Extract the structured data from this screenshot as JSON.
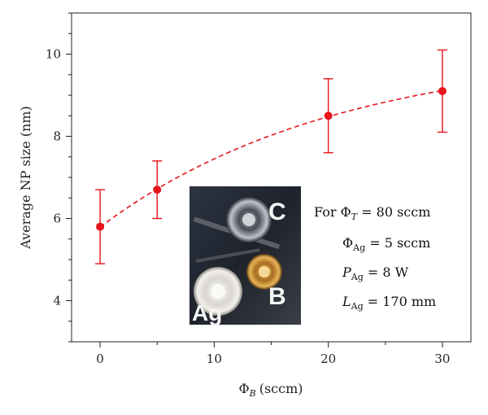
{
  "chart_data": {
    "type": "scatter",
    "xlabel_symbol": "Φ",
    "xlabel_subscript": "B",
    "xlabel_unit": "(sccm)",
    "ylabel": "Average NP size (nm)",
    "xlim": [
      -2.5,
      32.5
    ],
    "ylim": [
      3.0,
      11.0
    ],
    "x_ticks": [
      0,
      10,
      20,
      30
    ],
    "y_ticks": [
      4,
      6,
      8,
      10
    ],
    "x_minor_step": 5,
    "y_minor_step": 0.5,
    "grid": false,
    "color": "#e8141c",
    "x": [
      0,
      5,
      20,
      30
    ],
    "y": [
      5.8,
      6.7,
      8.5,
      9.1
    ],
    "error": [
      0.9,
      0.7,
      0.9,
      1.0
    ],
    "fit_curve": {
      "style": "dashed",
      "color": "#e8141c"
    },
    "annotations": [
      {
        "pre": "For ",
        "symbol": "Φ",
        "sub": "T",
        "sub_italic": true,
        "value": " = 80 sccm"
      },
      {
        "pre": "",
        "symbol": "Φ",
        "sub": "Ag",
        "sub_italic": false,
        "value": " = 5 sccm"
      },
      {
        "pre": "",
        "symbol": "P",
        "sub": "Ag",
        "sub_italic": false,
        "value": " = 8 W"
      },
      {
        "pre": "",
        "symbol": "L",
        "sub": "Ag",
        "sub_italic": false,
        "value": " = 170 mm"
      }
    ],
    "inset_photo_labels": [
      "C",
      "B",
      "Ag"
    ]
  }
}
